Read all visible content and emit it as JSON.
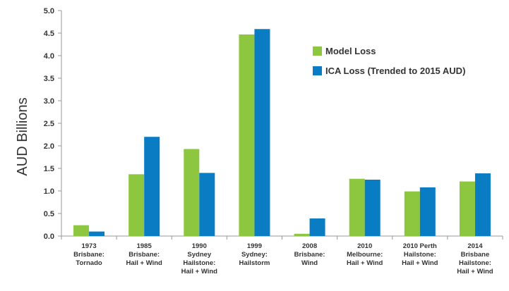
{
  "chart_data": {
    "type": "bar",
    "ylabel": "AUD Billions",
    "ylim": [
      0,
      5.0
    ],
    "yticks": [
      "0.0",
      "0.5",
      "1.0",
      "1.5",
      "2.0",
      "2.5",
      "3.0",
      "3.5",
      "4.0",
      "4.5",
      "5.0"
    ],
    "grid": false,
    "legend_position": "top-right",
    "categories": [
      [
        "1973",
        "Brisbane:",
        "Tornado"
      ],
      [
        "1985",
        "Brisbane:",
        "Hail + Wind"
      ],
      [
        "1990",
        "Sydney",
        "Hailstone:",
        "Hail + Wind"
      ],
      [
        "1999",
        "Sydney:",
        "Hailstorm"
      ],
      [
        "2008",
        "Brisbane:",
        "Wind"
      ],
      [
        "2010",
        "Melbourne:",
        "Hail + Wind"
      ],
      [
        "2010 Perth",
        "Hailstone:",
        "Hail + Wind"
      ],
      [
        "2014",
        "Brisbane",
        "Hailstone:",
        "Hail + Wind"
      ]
    ],
    "series": [
      {
        "name": "Model Loss",
        "color": "#8DC63F",
        "values": [
          0.24,
          1.37,
          1.93,
          4.47,
          0.05,
          1.27,
          0.99,
          1.21
        ]
      },
      {
        "name": "ICA Loss (Trended to 2015 AUD)",
        "color": "#0A7CC4",
        "values": [
          0.1,
          2.2,
          1.4,
          4.59,
          0.39,
          1.25,
          1.08,
          1.39
        ]
      }
    ]
  }
}
